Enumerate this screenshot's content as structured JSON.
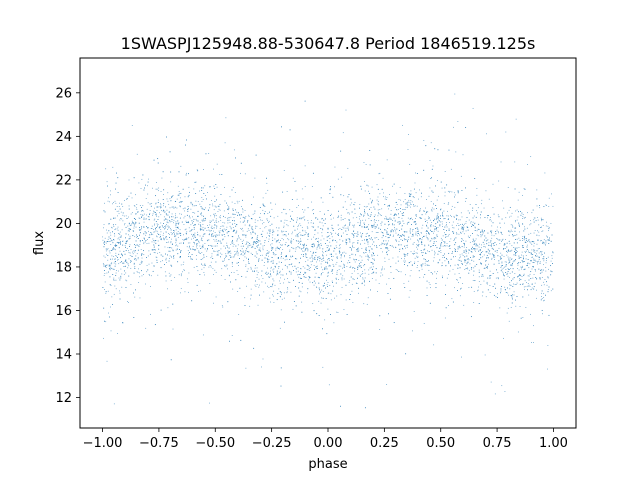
{
  "chart_data": {
    "type": "scatter",
    "title": "1SWASPJ125948.88-530647.8 Period 1846519.125s",
    "xlabel": "phase",
    "ylabel": "flux",
    "xlim": [
      -1.1,
      1.1
    ],
    "ylim": [
      10.6,
      27.6
    ],
    "xticks": [
      -1.0,
      -0.75,
      -0.5,
      -0.25,
      0.0,
      0.25,
      0.5,
      0.75,
      1.0
    ],
    "xtick_labels": [
      "−1.00",
      "−0.75",
      "−0.50",
      "−0.25",
      "0.00",
      "0.25",
      "0.50",
      "0.75",
      "1.00"
    ],
    "yticks": [
      12,
      14,
      16,
      18,
      20,
      22,
      24,
      26
    ],
    "ytick_labels": [
      "12",
      "14",
      "16",
      "18",
      "20",
      "22",
      "24",
      "26"
    ],
    "grid": false,
    "legend": "none",
    "marker_color": "#1f77b4",
    "series": [
      {
        "x_range": [
          -1.0,
          1.0
        ],
        "sampled_profile": {
          "phase": [
            -1.0,
            -0.75,
            -0.5,
            -0.25,
            0.0,
            0.25,
            0.5,
            0.75,
            1.0
          ],
          "median_flux": [
            18.5,
            19.8,
            19.5,
            18.7,
            18.6,
            19.6,
            19.6,
            18.6,
            18.5
          ],
          "spread": [
            1.2,
            1.1,
            1.1,
            1.1,
            1.2,
            1.1,
            1.1,
            1.1,
            1.2
          ]
        },
        "flux_min": 11.4,
        "flux_max": 26.8
      }
    ]
  }
}
